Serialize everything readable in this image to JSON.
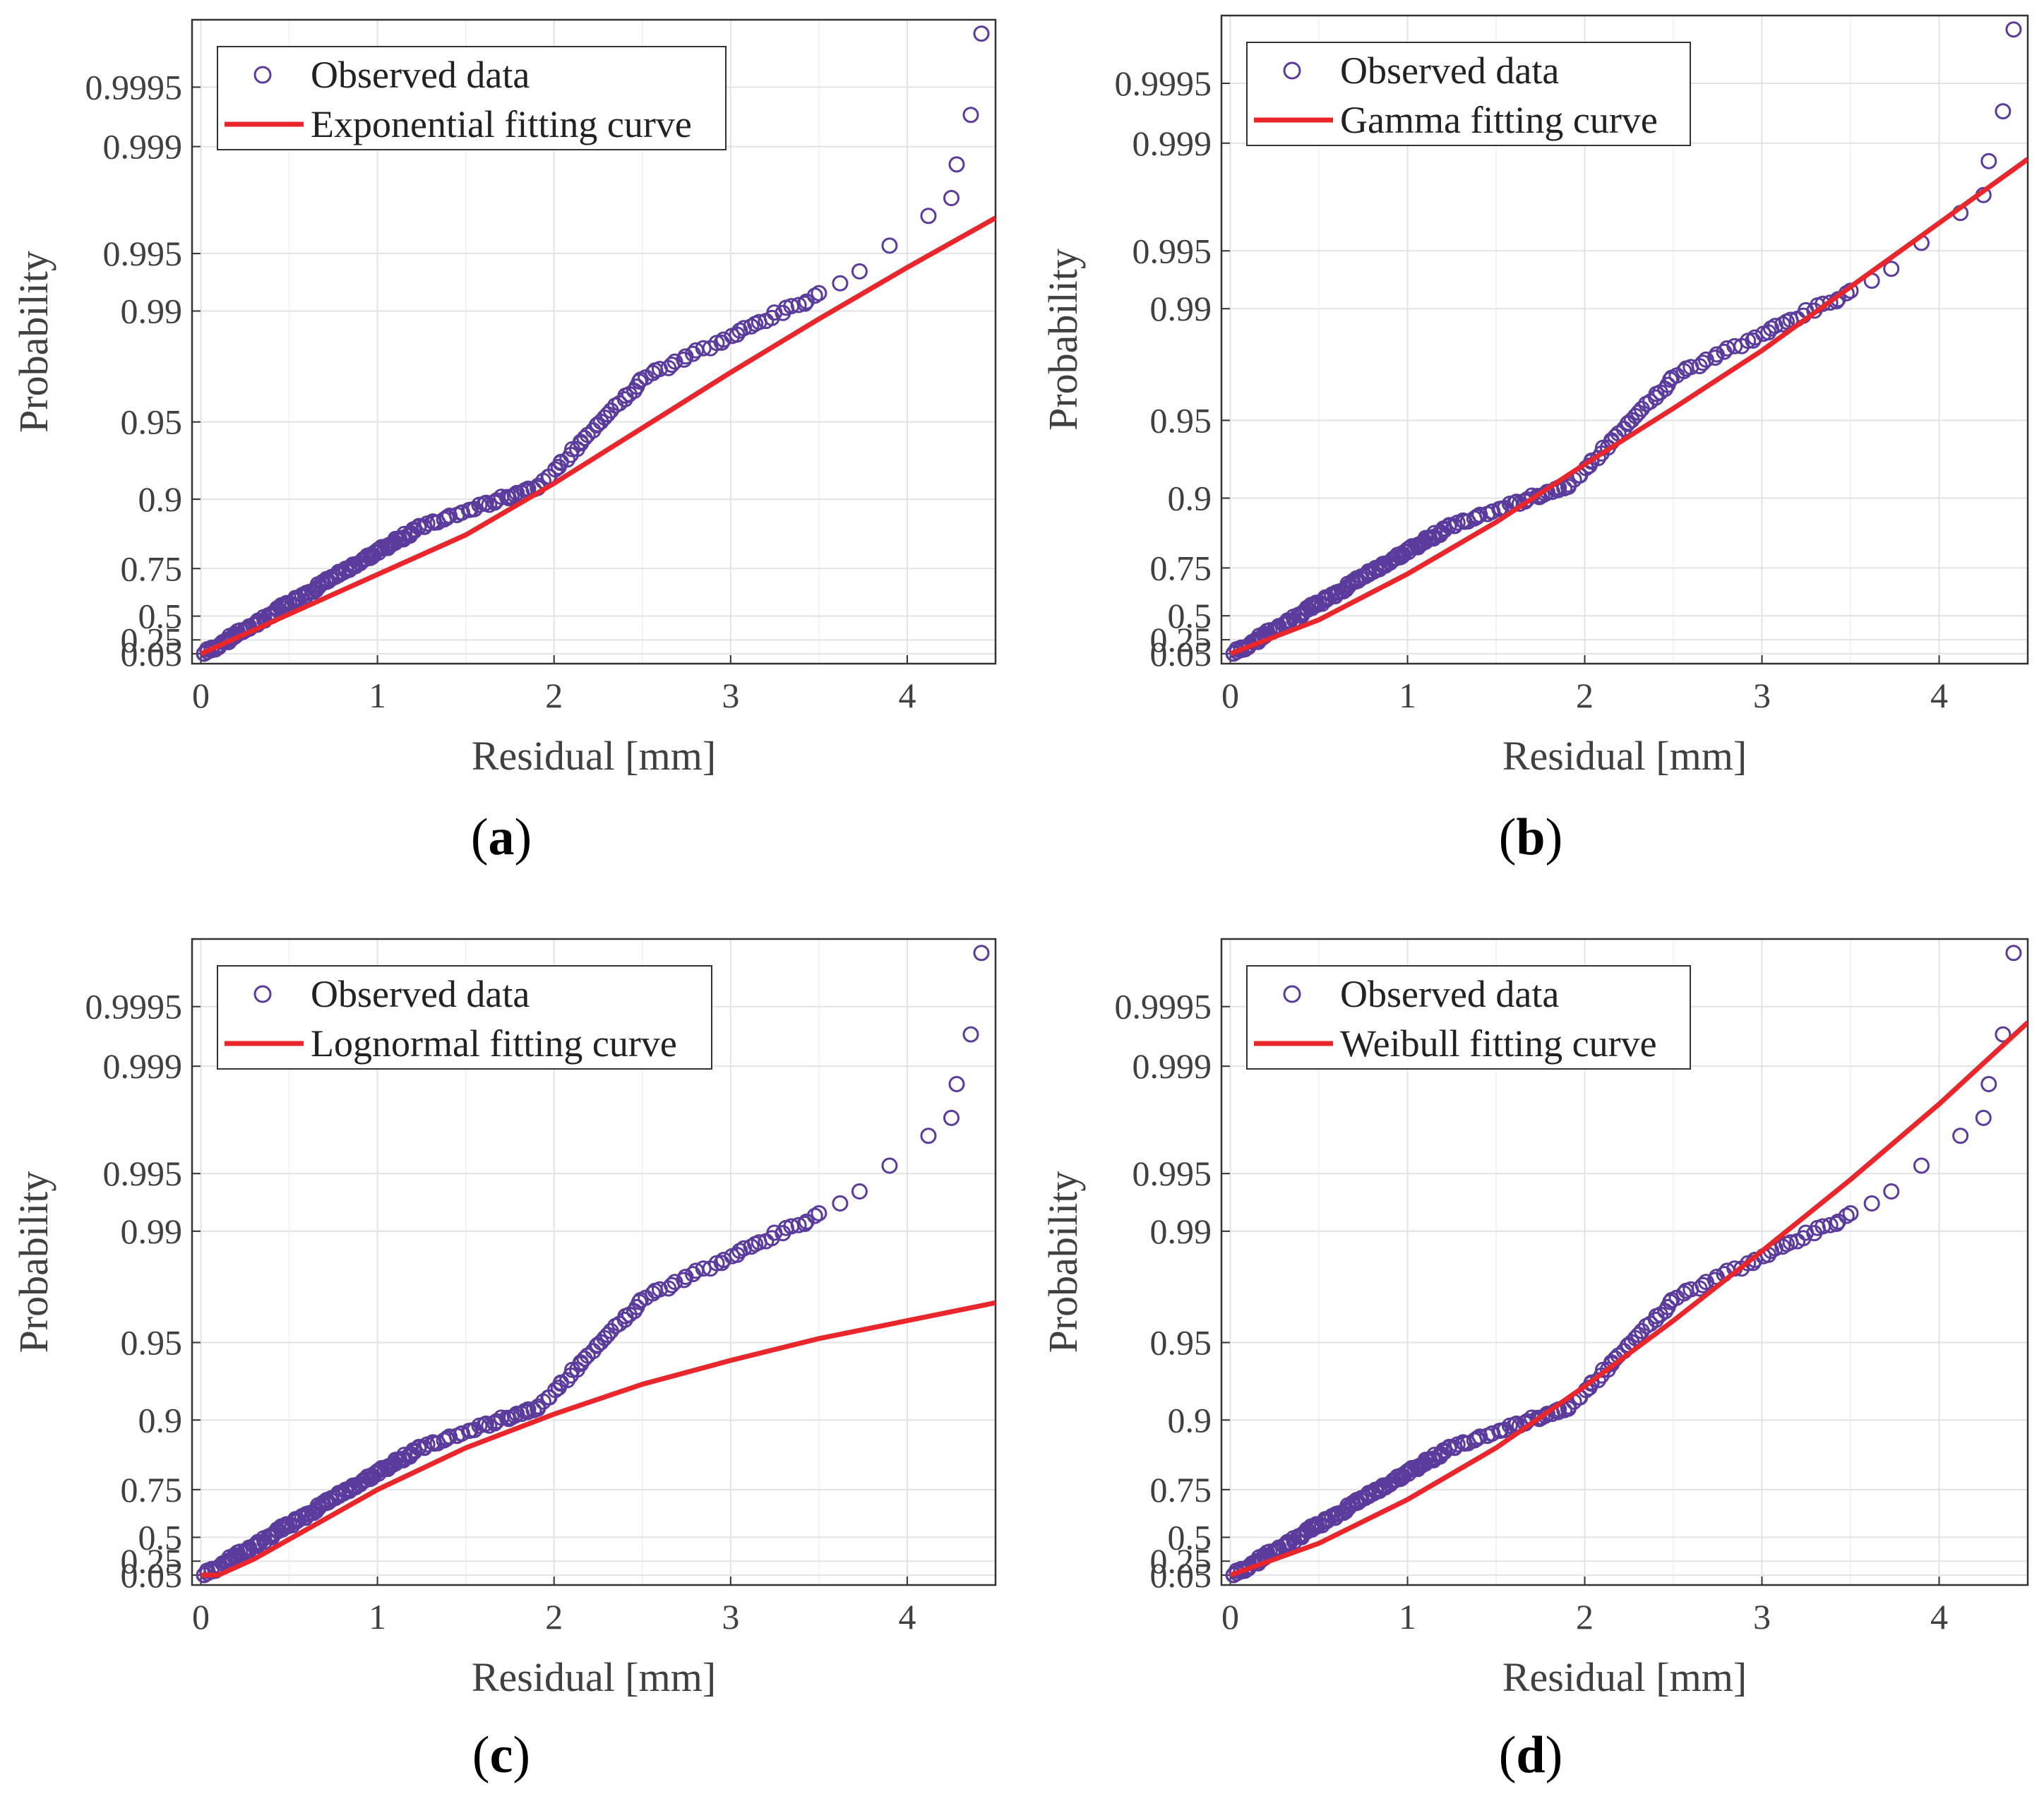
{
  "chart_data": [
    {
      "panel_label": "a",
      "type": "scatter",
      "xlabel": "Residual [mm]",
      "ylabel": "Probability",
      "xlim": [
        -0.05,
        4.5
      ],
      "xticks": [
        "0",
        "1",
        "2",
        "3",
        "4"
      ],
      "yticks": [
        "0.05",
        "0.25",
        "0.5",
        "0.75",
        "0.9",
        "0.95",
        "0.99",
        "0.995",
        "0.999",
        "0.9995"
      ],
      "grid": true,
      "legend_position": "top-left",
      "series": [
        {
          "name": "Observed data",
          "kind": "markers",
          "color": "#5b3b9c"
        },
        {
          "name": "Exponential fitting curve",
          "kind": "line",
          "color": "#e8262b",
          "x": [
            0,
            0.5,
            1,
            1.5,
            2,
            2.5,
            3,
            3.5,
            4,
            4.5
          ],
          "y": [
            0.0,
            0.2,
            0.4,
            0.6,
            0.86,
            1.14,
            1.42,
            1.69,
            1.95,
            2.2
          ]
        }
      ],
      "observed_tail": {
        "x": [
          3.5,
          3.62,
          3.73,
          3.9,
          4.12,
          4.25,
          4.28,
          4.36,
          4.42
        ],
        "y": [
          1.82,
          1.87,
          1.93,
          2.06,
          2.21,
          2.3,
          2.47,
          2.72,
          3.13
        ]
      }
    },
    {
      "panel_label": "b",
      "type": "scatter",
      "xlabel": "Residual [mm]",
      "ylabel": "Probability",
      "xlim": [
        -0.05,
        4.5
      ],
      "xticks": [
        "0",
        "1",
        "2",
        "3",
        "4"
      ],
      "yticks": [
        "0.05",
        "0.25",
        "0.5",
        "0.75",
        "0.9",
        "0.95",
        "0.99",
        "0.995",
        "0.999",
        "0.9995"
      ],
      "grid": true,
      "legend_position": "top-left",
      "series": [
        {
          "name": "Observed data",
          "kind": "markers",
          "color": "#5b3b9c"
        },
        {
          "name": "Gamma fitting curve",
          "kind": "line",
          "color": "#e8262b",
          "x": [
            0,
            0.5,
            1,
            1.5,
            2,
            2.5,
            3,
            3.5,
            4,
            4.5
          ],
          "y": [
            0.0,
            0.17,
            0.4,
            0.66,
            0.95,
            1.23,
            1.52,
            1.84,
            2.16,
            2.48
          ]
        }
      ],
      "observed_tail": {
        "x": [
          3.5,
          3.62,
          3.73,
          3.9,
          4.12,
          4.25,
          4.28,
          4.36,
          4.42
        ],
        "y": [
          1.82,
          1.87,
          1.93,
          2.06,
          2.21,
          2.3,
          2.47,
          2.72,
          3.13
        ]
      }
    },
    {
      "panel_label": "c",
      "type": "scatter",
      "xlabel": "Residual [mm]",
      "ylabel": "Probability",
      "xlim": [
        -0.05,
        4.5
      ],
      "xticks": [
        "0",
        "1",
        "2",
        "3",
        "4"
      ],
      "yticks": [
        "0.05",
        "0.25",
        "0.5",
        "0.75",
        "0.9",
        "0.95",
        "0.99",
        "0.995",
        "0.999",
        "0.9995"
      ],
      "grid": true,
      "legend_position": "top-left",
      "series": [
        {
          "name": "Observed data",
          "kind": "markers",
          "color": "#5b3b9c"
        },
        {
          "name": "Lognormal fitting curve",
          "kind": "line",
          "color": "#e8262b",
          "x": [
            0,
            0.1,
            0.3,
            0.6,
            1,
            1.5,
            2,
            2.5,
            3,
            3.5,
            4,
            4.5
          ],
          "y": [
            0.0,
            0.0,
            0.08,
            0.23,
            0.43,
            0.64,
            0.81,
            0.96,
            1.08,
            1.19,
            1.28,
            1.37
          ]
        }
      ],
      "observed_tail": {
        "x": [
          3.5,
          3.62,
          3.73,
          3.9,
          4.12,
          4.25,
          4.28,
          4.36,
          4.42
        ],
        "y": [
          1.82,
          1.87,
          1.93,
          2.06,
          2.21,
          2.3,
          2.47,
          2.72,
          3.13
        ]
      }
    },
    {
      "panel_label": "d",
      "type": "scatter",
      "xlabel": "Residual [mm]",
      "ylabel": "Probability",
      "xlim": [
        -0.05,
        4.5
      ],
      "xticks": [
        "0",
        "1",
        "2",
        "3",
        "4"
      ],
      "yticks": [
        "0.05",
        "0.25",
        "0.5",
        "0.75",
        "0.9",
        "0.95",
        "0.99",
        "0.995",
        "0.999",
        "0.9995"
      ],
      "grid": true,
      "legend_position": "top-left",
      "series": [
        {
          "name": "Observed data",
          "kind": "markers",
          "color": "#5b3b9c"
        },
        {
          "name": "Weibull fitting curve",
          "kind": "line",
          "color": "#e8262b",
          "x": [
            0,
            0.5,
            1,
            1.5,
            2,
            2.5,
            3,
            3.5,
            4,
            4.5
          ],
          "y": [
            0.0,
            0.16,
            0.38,
            0.64,
            0.95,
            1.28,
            1.63,
            1.99,
            2.37,
            2.78
          ]
        }
      ],
      "observed_tail": {
        "x": [
          3.5,
          3.62,
          3.73,
          3.9,
          4.12,
          4.25,
          4.28,
          4.36,
          4.42
        ],
        "y": [
          1.82,
          1.87,
          1.93,
          2.06,
          2.21,
          2.3,
          2.47,
          2.72,
          3.13
        ]
      }
    }
  ]
}
